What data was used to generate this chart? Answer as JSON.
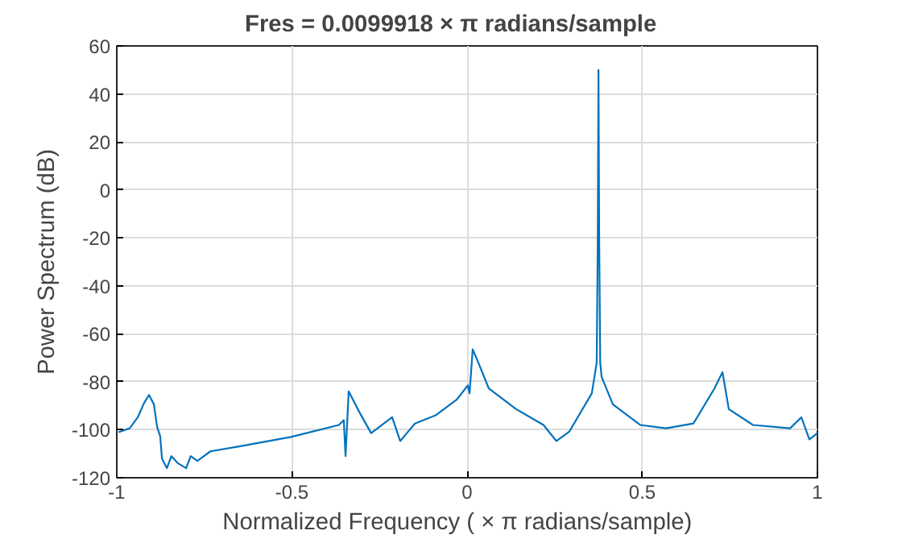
{
  "chart_data": {
    "type": "line",
    "title": "Fres  =  0.0099918   × π  radians/sample",
    "xlabel": "Normalized  Frequency  ( × π  radians/sample)",
    "ylabel": "Power Spectrum (dB)",
    "xlim": [
      -1,
      1
    ],
    "ylim": [
      -120,
      60
    ],
    "xticks": [
      -1,
      -0.5,
      0,
      0.5,
      1
    ],
    "yticks": [
      -120,
      -100,
      -80,
      -60,
      -40,
      -20,
      0,
      20,
      40,
      60
    ],
    "grid": true,
    "series": [
      {
        "color": "#0072bd",
        "x": [
          -0.995,
          -0.963,
          -0.94,
          -0.922,
          -0.908,
          -0.894,
          -0.885,
          -0.876,
          -0.871,
          -0.857,
          -0.844,
          -0.825,
          -0.802,
          -0.789,
          -0.77,
          -0.733,
          -0.641,
          -0.503,
          -0.366,
          -0.352,
          -0.347,
          -0.338,
          -0.31,
          -0.274,
          -0.214,
          -0.191,
          -0.149,
          -0.09,
          -0.03,
          0.002,
          0.007,
          0.016,
          0.025,
          0.062,
          0.14,
          0.218,
          0.255,
          0.292,
          0.356,
          0.37,
          0.373,
          0.375,
          0.377,
          0.38,
          0.384,
          0.416,
          0.494,
          0.568,
          0.646,
          0.706,
          0.729,
          0.747,
          0.816,
          0.922,
          0.954,
          0.977,
          1.0
        ],
        "values": [
          -101,
          -99.4,
          -94.8,
          -88.8,
          -85.5,
          -89.4,
          -98.7,
          -102.7,
          -112,
          -116,
          -111,
          -114,
          -116,
          -111,
          -113,
          -109,
          -106.7,
          -103,
          -98,
          -96,
          -111,
          -84,
          -92,
          -101.4,
          -94.8,
          -104.7,
          -97.4,
          -94,
          -87.5,
          -81.5,
          -84.8,
          -66.5,
          -69.5,
          -82.8,
          -91.4,
          -98,
          -104.7,
          -100.7,
          -84.8,
          -72,
          -20,
          50,
          -20,
          -72,
          -78,
          -89.4,
          -98,
          -99.4,
          -97.4,
          -82.8,
          -76,
          -91.4,
          -98,
          -99.4,
          -94.8,
          -104,
          -101.4
        ]
      }
    ]
  }
}
